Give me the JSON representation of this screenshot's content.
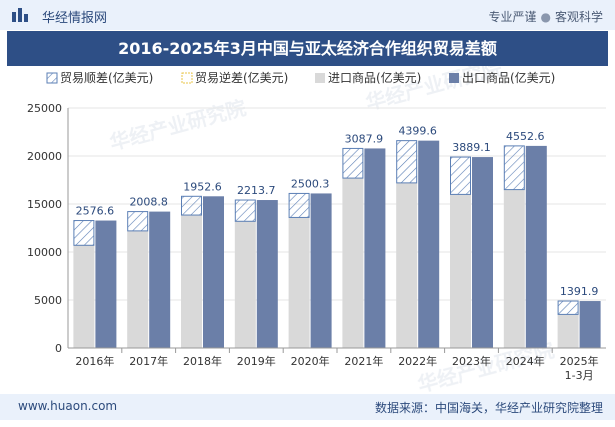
{
  "header": {
    "logo_text": "华经情报网",
    "slogan_left": "专业严谨",
    "slogan_sep": "●",
    "slogan_right": "客观科学"
  },
  "title": "2016-2025年3月中国与亚太经济合作组织贸易差额",
  "footer": {
    "url": "www.huaon.com",
    "source": "数据来源：中国海关，华经产业研究院整理"
  },
  "watermark": "华经产业研究院",
  "colors": {
    "header_bg": "#eaf1fb",
    "title_bg": "#2e4f86",
    "import": "#d9d9d9",
    "export": "#6b7fa8",
    "surplus_stroke": "#5b7fb5",
    "deficit_stroke": "#e8c54a",
    "label": "#2c4a7c"
  },
  "chart_data": {
    "type": "bar",
    "categories": [
      "2016年",
      "2017年",
      "2018年",
      "2019年",
      "2020年",
      "2021年",
      "2022年",
      "2023年",
      "2024年",
      "2025年\n1-3月"
    ],
    "ylim": [
      0,
      25000
    ],
    "yticks": [
      0,
      5000,
      10000,
      15000,
      20000,
      25000
    ],
    "legend": {
      "surplus": "贸易顺差(亿美元)",
      "deficit": "贸易逆差(亿美元)",
      "import": "进口商品(亿美元)",
      "export": "出口商品(亿美元)"
    },
    "series": [
      {
        "name": "进口商品(亿美元)",
        "values": [
          10700,
          12200,
          13850,
          13200,
          13600,
          17700,
          17200,
          16000,
          16500,
          3500
        ]
      },
      {
        "name": "出口商品(亿美元)",
        "values": [
          13276.6,
          14208.8,
          15802.6,
          15413.7,
          16100.3,
          20787.9,
          21599.6,
          19889.1,
          21052.6,
          4891.9
        ]
      }
    ],
    "trade_balance": [
      2576.6,
      2008.8,
      1952.6,
      2213.7,
      2500.3,
      3087.9,
      4399.6,
      3889.1,
      4552.6,
      1391.9
    ],
    "trade_balance_labels": [
      "2576.6",
      "2008.8",
      "1952.6",
      "2213.7",
      "2500.3",
      "3087.9",
      "4399.6",
      "3889.1",
      "4552.6",
      "1391.9"
    ]
  }
}
